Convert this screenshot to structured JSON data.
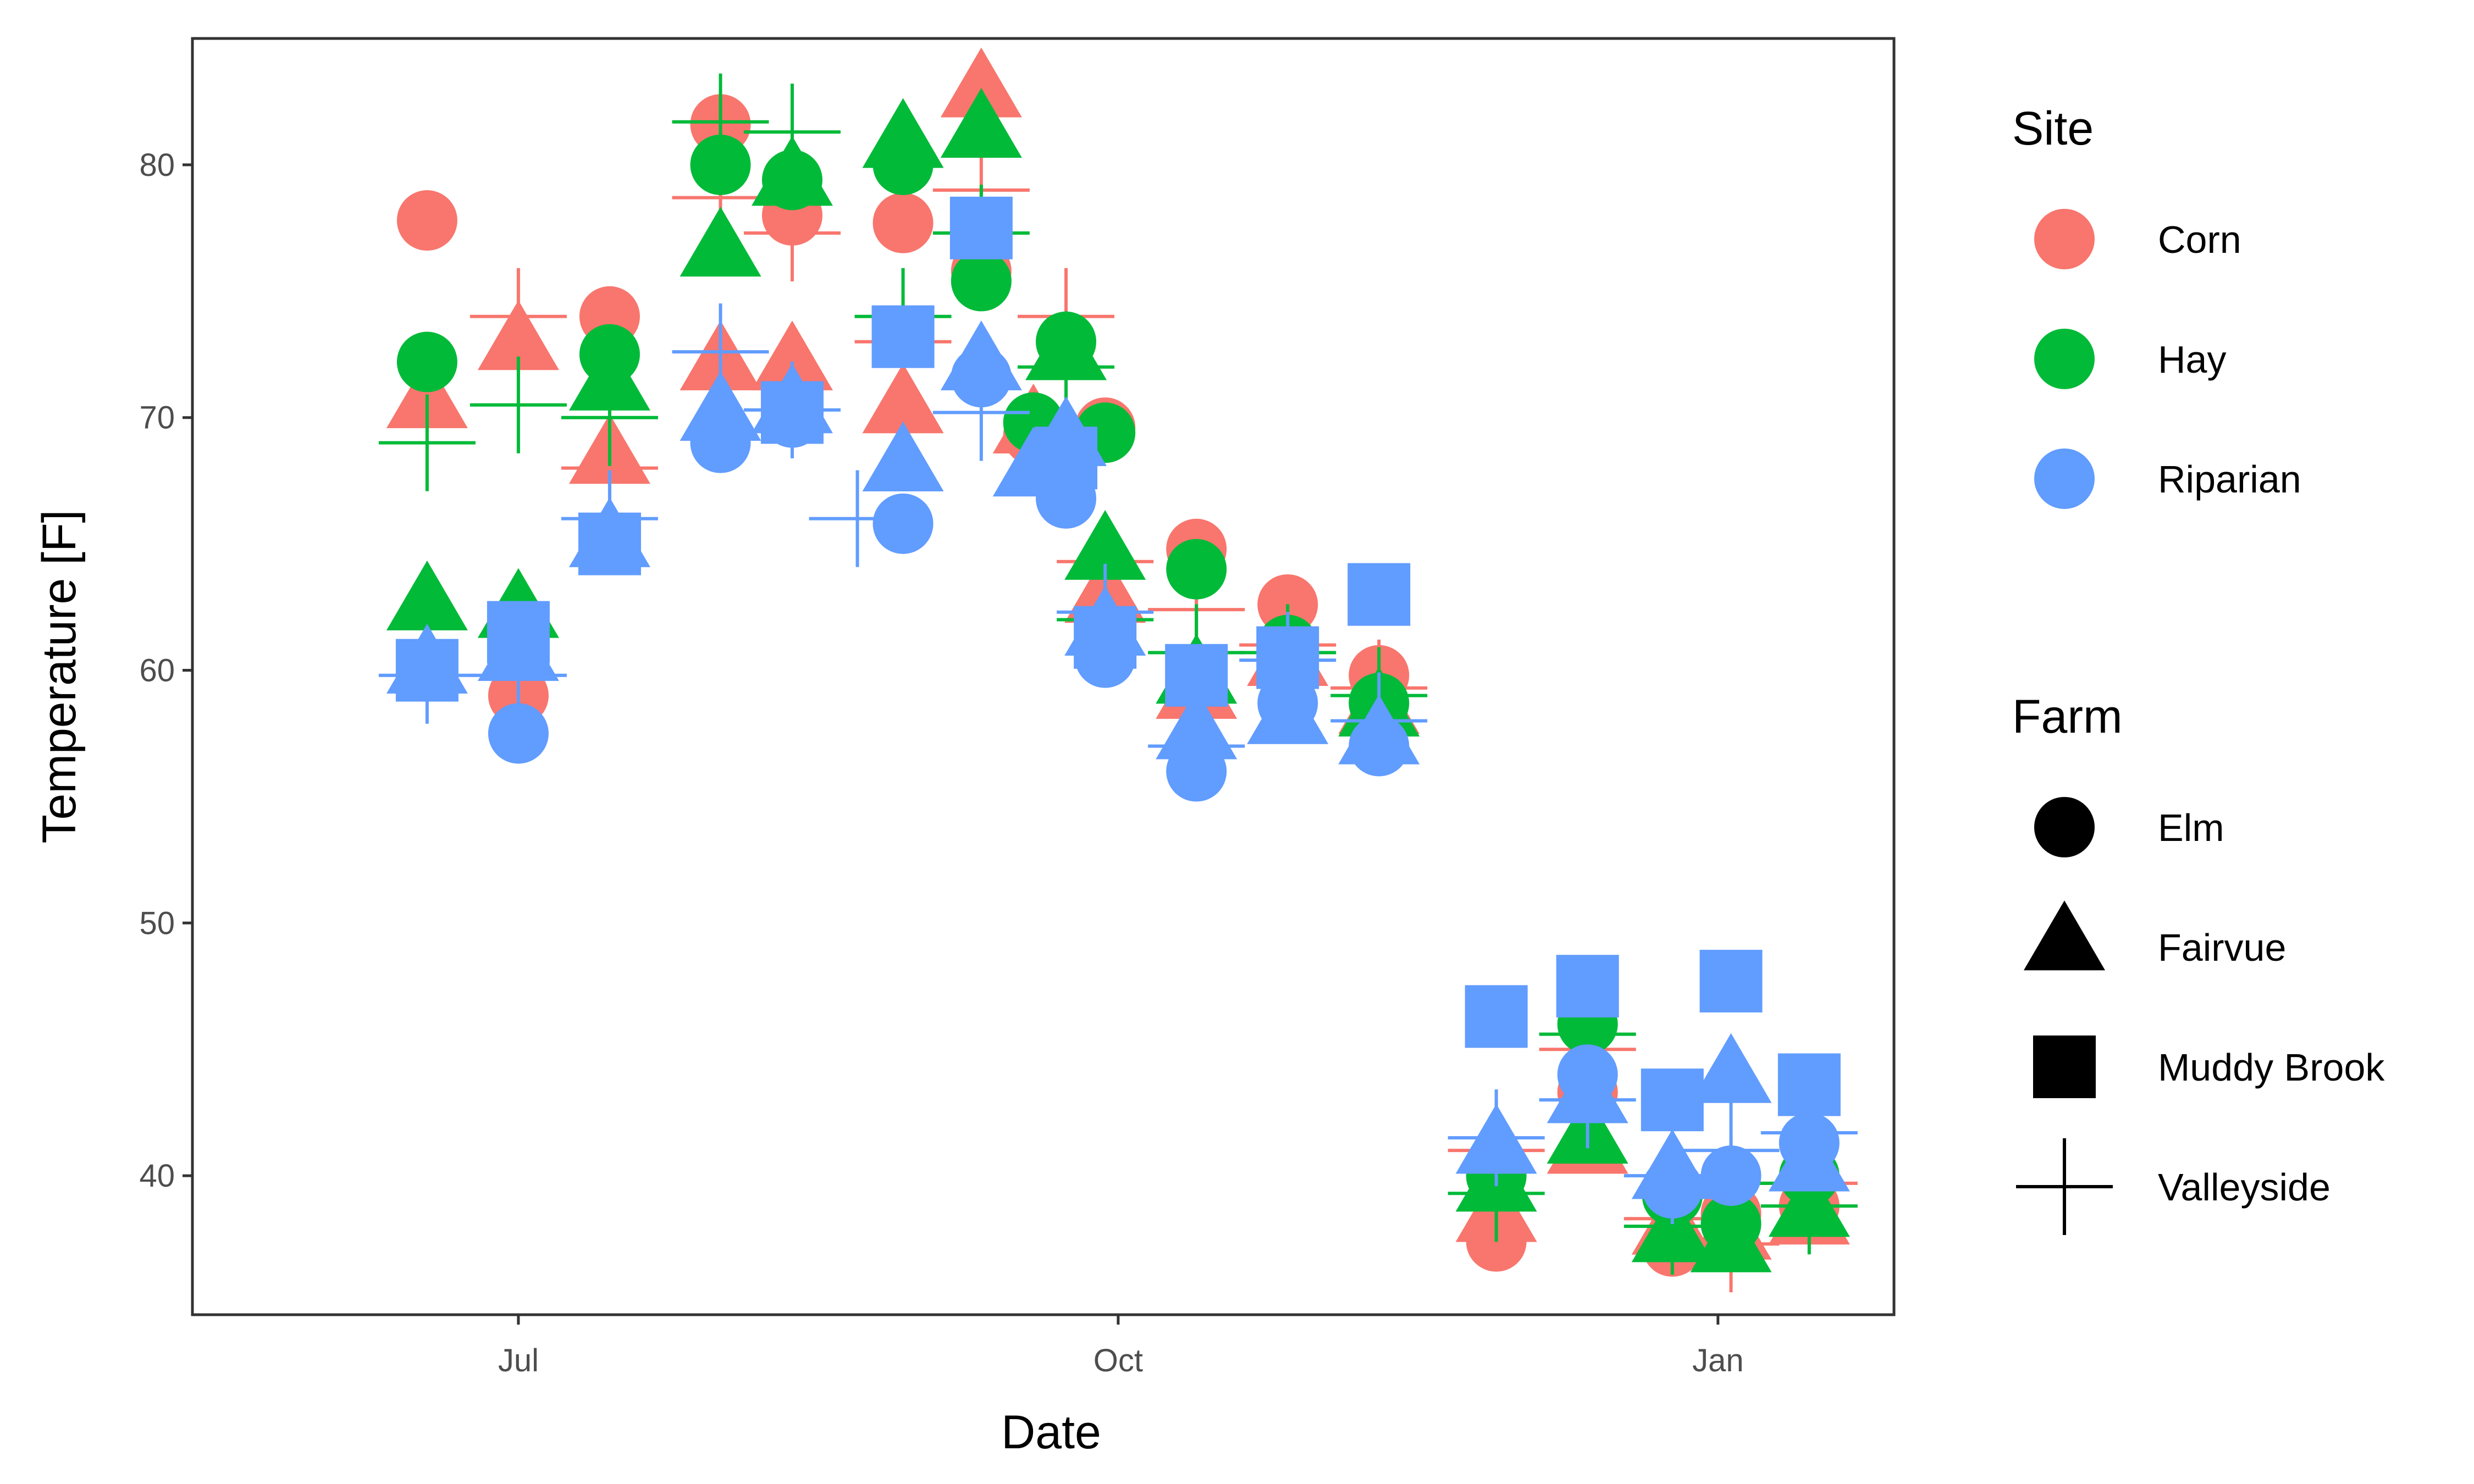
{
  "chart_data": {
    "type": "scatter",
    "title": "",
    "xlabel": "Date",
    "ylabel": "Temperature [F]",
    "x_ticks": [
      "Jul",
      "Oct",
      "Jan"
    ],
    "x_tick_dates": [
      "2016-07-01",
      "2016-10-01",
      "2017-01-01"
    ],
    "xlim": [
      "2016-05-12",
      "2017-01-28"
    ],
    "y_ticks": [
      40,
      50,
      60,
      70,
      80
    ],
    "ylim": [
      34.5,
      85
    ],
    "grid": false,
    "legend_placement": "right",
    "legends": {
      "color": {
        "title": "Site",
        "entries": [
          {
            "label": "Corn",
            "color": "#F8766D"
          },
          {
            "label": "Hay",
            "color": "#00BA38"
          },
          {
            "label": "Riparian",
            "color": "#619CFF"
          }
        ]
      },
      "shape": {
        "title": "Farm",
        "entries": [
          {
            "label": "Elm",
            "shape": "circle"
          },
          {
            "label": "Fairvue",
            "shape": "triangle"
          },
          {
            "label": "Muddy Brook",
            "shape": "square"
          },
          {
            "label": "Valleyside",
            "shape": "plus"
          }
        ]
      }
    },
    "series": [
      {
        "site": "Corn",
        "farm": "Elm",
        "points": [
          [
            "2016-06-17",
            77.8
          ],
          [
            "2016-07-01",
            59
          ],
          [
            "2016-07-15",
            74
          ],
          [
            "2016-08-01",
            81.6
          ],
          [
            "2016-08-12",
            78
          ],
          [
            "2016-08-29",
            77.7
          ],
          [
            "2016-09-10",
            75.8
          ],
          [
            "2016-09-18",
            69.3
          ],
          [
            "2016-09-29",
            69.6
          ],
          [
            "2016-10-13",
            64.8
          ],
          [
            "2016-10-27",
            62.6
          ],
          [
            "2016-11-10",
            59.8
          ],
          [
            "2016-11-28",
            37.4
          ],
          [
            "2016-12-12",
            43.3
          ],
          [
            "2016-12-25",
            37.2
          ],
          [
            "2017-01-03",
            38.5
          ],
          [
            "2017-01-15",
            38.8
          ]
        ]
      },
      {
        "site": "Corn",
        "farm": "Fairvue",
        "points": [
          [
            "2016-06-17",
            70.5
          ],
          [
            "2016-07-01",
            72.8
          ],
          [
            "2016-07-15",
            68.3
          ],
          [
            "2016-08-01",
            72
          ],
          [
            "2016-08-12",
            72
          ],
          [
            "2016-08-29",
            70.3
          ],
          [
            "2016-09-10",
            82.8
          ],
          [
            "2016-09-18",
            69.5
          ],
          [
            "2016-09-29",
            62.8
          ],
          [
            "2016-10-13",
            59
          ],
          [
            "2016-10-27",
            60.3
          ],
          [
            "2016-11-10",
            58.4
          ],
          [
            "2016-11-28",
            38.3
          ],
          [
            "2016-12-12",
            41
          ],
          [
            "2016-12-25",
            37.8
          ],
          [
            "2017-01-03",
            37.6
          ],
          [
            "2017-01-15",
            38.2
          ]
        ]
      },
      {
        "site": "Corn",
        "farm": "Valleyside",
        "points": [
          [
            "2016-07-01",
            74
          ],
          [
            "2016-07-15",
            68
          ],
          [
            "2016-08-01",
            78.7
          ],
          [
            "2016-08-12",
            77.3
          ],
          [
            "2016-08-29",
            73
          ],
          [
            "2016-09-10",
            79
          ],
          [
            "2016-09-23",
            74
          ],
          [
            "2016-09-29",
            64.3
          ],
          [
            "2016-10-13",
            62.4
          ],
          [
            "2016-10-27",
            61
          ],
          [
            "2016-11-10",
            59.3
          ],
          [
            "2016-11-28",
            41
          ],
          [
            "2016-12-12",
            45
          ],
          [
            "2016-12-25",
            38.3
          ],
          [
            "2017-01-03",
            37.3
          ],
          [
            "2017-01-15",
            39.7
          ]
        ]
      },
      {
        "site": "Hay",
        "farm": "Elm",
        "points": [
          [
            "2016-06-17",
            72.2
          ],
          [
            "2016-07-15",
            72.5
          ],
          [
            "2016-08-01",
            80
          ],
          [
            "2016-08-12",
            79.4
          ],
          [
            "2016-08-29",
            80
          ],
          [
            "2016-09-10",
            75.4
          ],
          [
            "2016-09-18",
            69.8
          ],
          [
            "2016-09-23",
            73
          ],
          [
            "2016-09-29",
            69.4
          ],
          [
            "2016-10-13",
            64
          ],
          [
            "2016-10-27",
            61
          ],
          [
            "2016-11-10",
            58.7
          ],
          [
            "2016-11-28",
            40
          ],
          [
            "2016-12-12",
            46
          ],
          [
            "2016-12-25",
            39.2
          ],
          [
            "2017-01-03",
            38.1
          ],
          [
            "2017-01-15",
            40
          ]
        ]
      },
      {
        "site": "Hay",
        "farm": "Fairvue",
        "points": [
          [
            "2016-06-17",
            62.5
          ],
          [
            "2016-07-01",
            62.2
          ],
          [
            "2016-07-15",
            71.2
          ],
          [
            "2016-08-01",
            76.5
          ],
          [
            "2016-08-12",
            79.3
          ],
          [
            "2016-08-29",
            80.8
          ],
          [
            "2016-09-10",
            81.2
          ],
          [
            "2016-09-23",
            72.4
          ],
          [
            "2016-09-29",
            64.5
          ],
          [
            "2016-10-13",
            59.6
          ],
          [
            "2016-11-10",
            58.3
          ],
          [
            "2016-11-28",
            39.5
          ],
          [
            "2016-12-12",
            41.4
          ],
          [
            "2016-12-25",
            37.5
          ],
          [
            "2017-01-03",
            37.1
          ],
          [
            "2017-01-15",
            38.5
          ]
        ]
      },
      {
        "site": "Hay",
        "farm": "Valleyside",
        "points": [
          [
            "2016-06-17",
            69
          ],
          [
            "2016-07-01",
            70.5
          ],
          [
            "2016-07-15",
            70
          ],
          [
            "2016-08-01",
            81.7
          ],
          [
            "2016-08-12",
            81.3
          ],
          [
            "2016-08-29",
            74
          ],
          [
            "2016-09-10",
            77.3
          ],
          [
            "2016-09-23",
            72
          ],
          [
            "2016-09-29",
            62
          ],
          [
            "2016-10-13",
            60.7
          ],
          [
            "2016-10-27",
            60.7
          ],
          [
            "2016-11-10",
            59
          ],
          [
            "2016-11-28",
            39.3
          ],
          [
            "2016-12-12",
            45.6
          ],
          [
            "2016-12-25",
            38
          ],
          [
            "2017-01-03",
            39.7
          ],
          [
            "2017-01-15",
            38.8
          ]
        ]
      },
      {
        "site": "Riparian",
        "farm": "Elm",
        "points": [
          [
            "2016-07-01",
            57.5
          ],
          [
            "2016-08-01",
            69
          ],
          [
            "2016-08-12",
            70
          ],
          [
            "2016-08-29",
            65.8
          ],
          [
            "2016-09-10",
            71.6
          ],
          [
            "2016-09-23",
            66.8
          ],
          [
            "2016-09-29",
            60.5
          ],
          [
            "2016-10-13",
            56
          ],
          [
            "2016-10-27",
            58.7
          ],
          [
            "2016-11-10",
            57
          ],
          [
            "2016-12-12",
            44
          ],
          [
            "2016-12-25",
            39.5
          ],
          [
            "2017-01-03",
            40
          ],
          [
            "2017-01-15",
            41.3
          ]
        ]
      },
      {
        "site": "Riparian",
        "farm": "Fairvue",
        "points": [
          [
            "2016-06-17",
            60
          ],
          [
            "2016-07-01",
            60.5
          ],
          [
            "2016-07-15",
            65
          ],
          [
            "2016-08-01",
            70
          ],
          [
            "2016-08-12",
            70.3
          ],
          [
            "2016-08-29",
            68
          ],
          [
            "2016-09-10",
            72
          ],
          [
            "2016-09-18",
            67.8
          ],
          [
            "2016-09-23",
            69
          ],
          [
            "2016-09-29",
            61.5
          ],
          [
            "2016-10-13",
            57.4
          ],
          [
            "2016-10-27",
            58
          ],
          [
            "2016-11-10",
            57.2
          ],
          [
            "2016-11-28",
            41
          ],
          [
            "2016-12-12",
            43
          ],
          [
            "2016-12-25",
            40
          ],
          [
            "2017-01-03",
            43.8
          ],
          [
            "2017-01-15",
            40.3
          ]
        ]
      },
      {
        "site": "Riparian",
        "farm": "Muddy Brook",
        "points": [
          [
            "2016-06-17",
            60
          ],
          [
            "2016-07-01",
            61.5
          ],
          [
            "2016-07-15",
            65
          ],
          [
            "2016-08-12",
            70.2
          ],
          [
            "2016-08-29",
            73.2
          ],
          [
            "2016-09-10",
            77.5
          ],
          [
            "2016-09-23",
            68.4
          ],
          [
            "2016-09-29",
            61.3
          ],
          [
            "2016-10-13",
            59.8
          ],
          [
            "2016-10-27",
            60.5
          ],
          [
            "2016-11-10",
            63
          ],
          [
            "2016-11-28",
            46.3
          ],
          [
            "2016-12-12",
            47.5
          ],
          [
            "2016-12-25",
            43
          ],
          [
            "2017-01-03",
            47.7
          ],
          [
            "2017-01-15",
            43.6
          ]
        ]
      },
      {
        "site": "Riparian",
        "farm": "Valleyside",
        "points": [
          [
            "2016-06-17",
            59.8
          ],
          [
            "2016-07-01",
            59.8
          ],
          [
            "2016-07-15",
            66
          ],
          [
            "2016-08-01",
            72.6
          ],
          [
            "2016-08-12",
            70.3
          ],
          [
            "2016-08-22",
            66
          ],
          [
            "2016-09-10",
            70.2
          ],
          [
            "2016-09-29",
            62.3
          ],
          [
            "2016-10-13",
            57
          ],
          [
            "2016-10-27",
            60.4
          ],
          [
            "2016-11-10",
            58
          ],
          [
            "2016-11-28",
            41.5
          ],
          [
            "2016-12-12",
            43
          ],
          [
            "2016-12-25",
            40
          ],
          [
            "2017-01-03",
            41
          ],
          [
            "2017-01-15",
            41.7
          ]
        ]
      }
    ]
  }
}
